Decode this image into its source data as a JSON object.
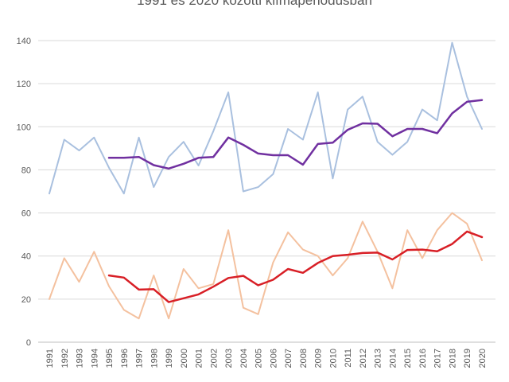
{
  "chart_data": {
    "type": "line",
    "title": "1991 és 2020 közötti klímaperiódusban",
    "xlabel": "",
    "ylabel": "",
    "ylim": [
      0,
      140
    ],
    "yticks": [
      0,
      20,
      40,
      60,
      80,
      100,
      120,
      140
    ],
    "grid": true,
    "legend": "none",
    "categories": [
      "1991",
      "1992",
      "1993",
      "1994",
      "1995",
      "1996",
      "1997",
      "1998",
      "1999",
      "2000",
      "2001",
      "2002",
      "2003",
      "2004",
      "2005",
      "2006",
      "2007",
      "2008",
      "2009",
      "2010",
      "2011",
      "2012",
      "2013",
      "2014",
      "2015",
      "2016",
      "2017",
      "2018",
      "2019",
      "2020"
    ],
    "series": [
      {
        "color": "#a9c0df",
        "width": 2,
        "values": [
          69,
          94,
          89,
          95,
          81,
          69,
          95,
          72,
          86,
          93,
          82,
          98,
          116,
          70,
          72,
          78,
          99,
          94,
          116,
          76,
          108,
          114,
          93,
          87,
          93,
          108,
          103,
          139,
          114,
          99
        ]
      },
      {
        "color": "#7030a0",
        "width": 2.5,
        "values": [
          null,
          null,
          null,
          null,
          85.6,
          85.6,
          86,
          82.2,
          80.6,
          82.8,
          85.6,
          86,
          95,
          91.6,
          87.6,
          86.8,
          86.8,
          82.4,
          92,
          92.6,
          98.6,
          101.6,
          101.4,
          95.6,
          99,
          99,
          97,
          106.2,
          111.6,
          112.4
        ]
      },
      {
        "color": "#f4c19f",
        "width": 2,
        "values": [
          20,
          39,
          28,
          42,
          26,
          15,
          11,
          31,
          11,
          34,
          25,
          27,
          52,
          16,
          13,
          37,
          51,
          43,
          40,
          31,
          39,
          56,
          42,
          25,
          52,
          39,
          52,
          60,
          55,
          38
        ]
      },
      {
        "color": "#d81f26",
        "width": 2.5,
        "values": [
          null,
          null,
          null,
          null,
          31,
          30,
          24.4,
          24.6,
          18.6,
          20.4,
          22.2,
          25.8,
          29.8,
          30.8,
          26.4,
          29,
          34,
          32.2,
          36.8,
          40,
          40.6,
          41.4,
          41.6,
          38.4,
          42.8,
          43,
          42.2,
          45.6,
          51.4,
          48.8
        ]
      }
    ]
  }
}
